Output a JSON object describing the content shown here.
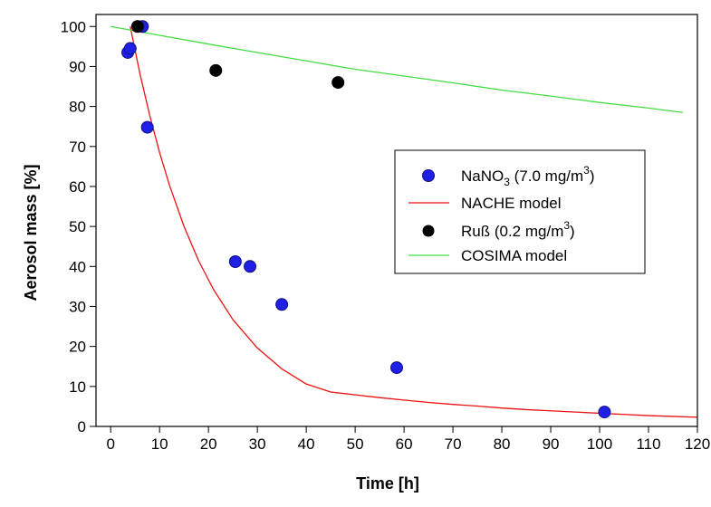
{
  "chart_data": {
    "type": "scatter",
    "xlabel": "Time [h]",
    "ylabel": "Aerosol mass [%]",
    "xlim": [
      -3,
      120
    ],
    "ylim": [
      0,
      103
    ],
    "x_ticks": [
      0,
      10,
      20,
      30,
      40,
      50,
      60,
      70,
      80,
      90,
      100,
      110,
      120
    ],
    "y_ticks": [
      0,
      10,
      20,
      30,
      40,
      50,
      60,
      70,
      80,
      90,
      100
    ],
    "legend_position": "center-right",
    "colors": {
      "nano3_fill": "#1f1fe6",
      "nano3_edge": "#101080",
      "russ_fill": "#000000",
      "nache_line": "#ee1111",
      "cosima_line": "#44dd44"
    },
    "series": [
      {
        "name": "NaNO3 (7.0 mg/m3)",
        "kind": "points",
        "x": [
          3.5,
          4.0,
          6.5,
          7.5,
          25.5,
          28.5,
          35.0,
          58.5,
          101.0
        ],
        "y": [
          93.5,
          94.5,
          100.0,
          74.8,
          41.2,
          40.0,
          30.5,
          14.7,
          3.6
        ]
      },
      {
        "name": "NACHE model",
        "kind": "line",
        "x": [
          4,
          6,
          8,
          10,
          12,
          15,
          18,
          21,
          25,
          30,
          35,
          40,
          45,
          50,
          55,
          60,
          65,
          70,
          75,
          80,
          85,
          90,
          95,
          100,
          105,
          110,
          115,
          120
        ],
        "y": [
          100.0,
          88.1,
          77.7,
          68.5,
          60.4,
          50.0,
          41.4,
          34.3,
          26.7,
          19.6,
          14.4,
          10.6,
          8.6,
          7.9,
          7.2,
          6.6,
          6.0,
          5.5,
          5.1,
          4.6,
          4.2,
          3.9,
          3.6,
          3.3,
          3.0,
          2.7,
          2.5,
          2.3
        ]
      },
      {
        "name": "Ruß (0.2 mg/m3)",
        "kind": "points",
        "x": [
          5.5,
          21.5,
          46.5
        ],
        "y": [
          100.0,
          89.0,
          86.0
        ]
      },
      {
        "name": "COSIMA model",
        "kind": "line",
        "x": [
          0,
          10,
          20,
          30,
          40,
          50,
          60,
          70,
          80,
          90,
          100,
          110,
          117
        ],
        "y": [
          100.0,
          97.8,
          95.6,
          93.5,
          91.4,
          89.3,
          87.6,
          85.9,
          84.1,
          82.6,
          81.0,
          79.6,
          78.5
        ]
      }
    ],
    "legend": {
      "nano3": {
        "prefix": "NaNO",
        "sub": "3",
        "mid": " (7.0 mg/m",
        "sup": "3",
        "suffix": ")"
      },
      "nache": "NACHE model",
      "russ": {
        "prefix": "Ruß (0.2 mg/m",
        "sup": "3",
        "suffix": ")"
      },
      "cosima": "COSIMA model"
    }
  }
}
